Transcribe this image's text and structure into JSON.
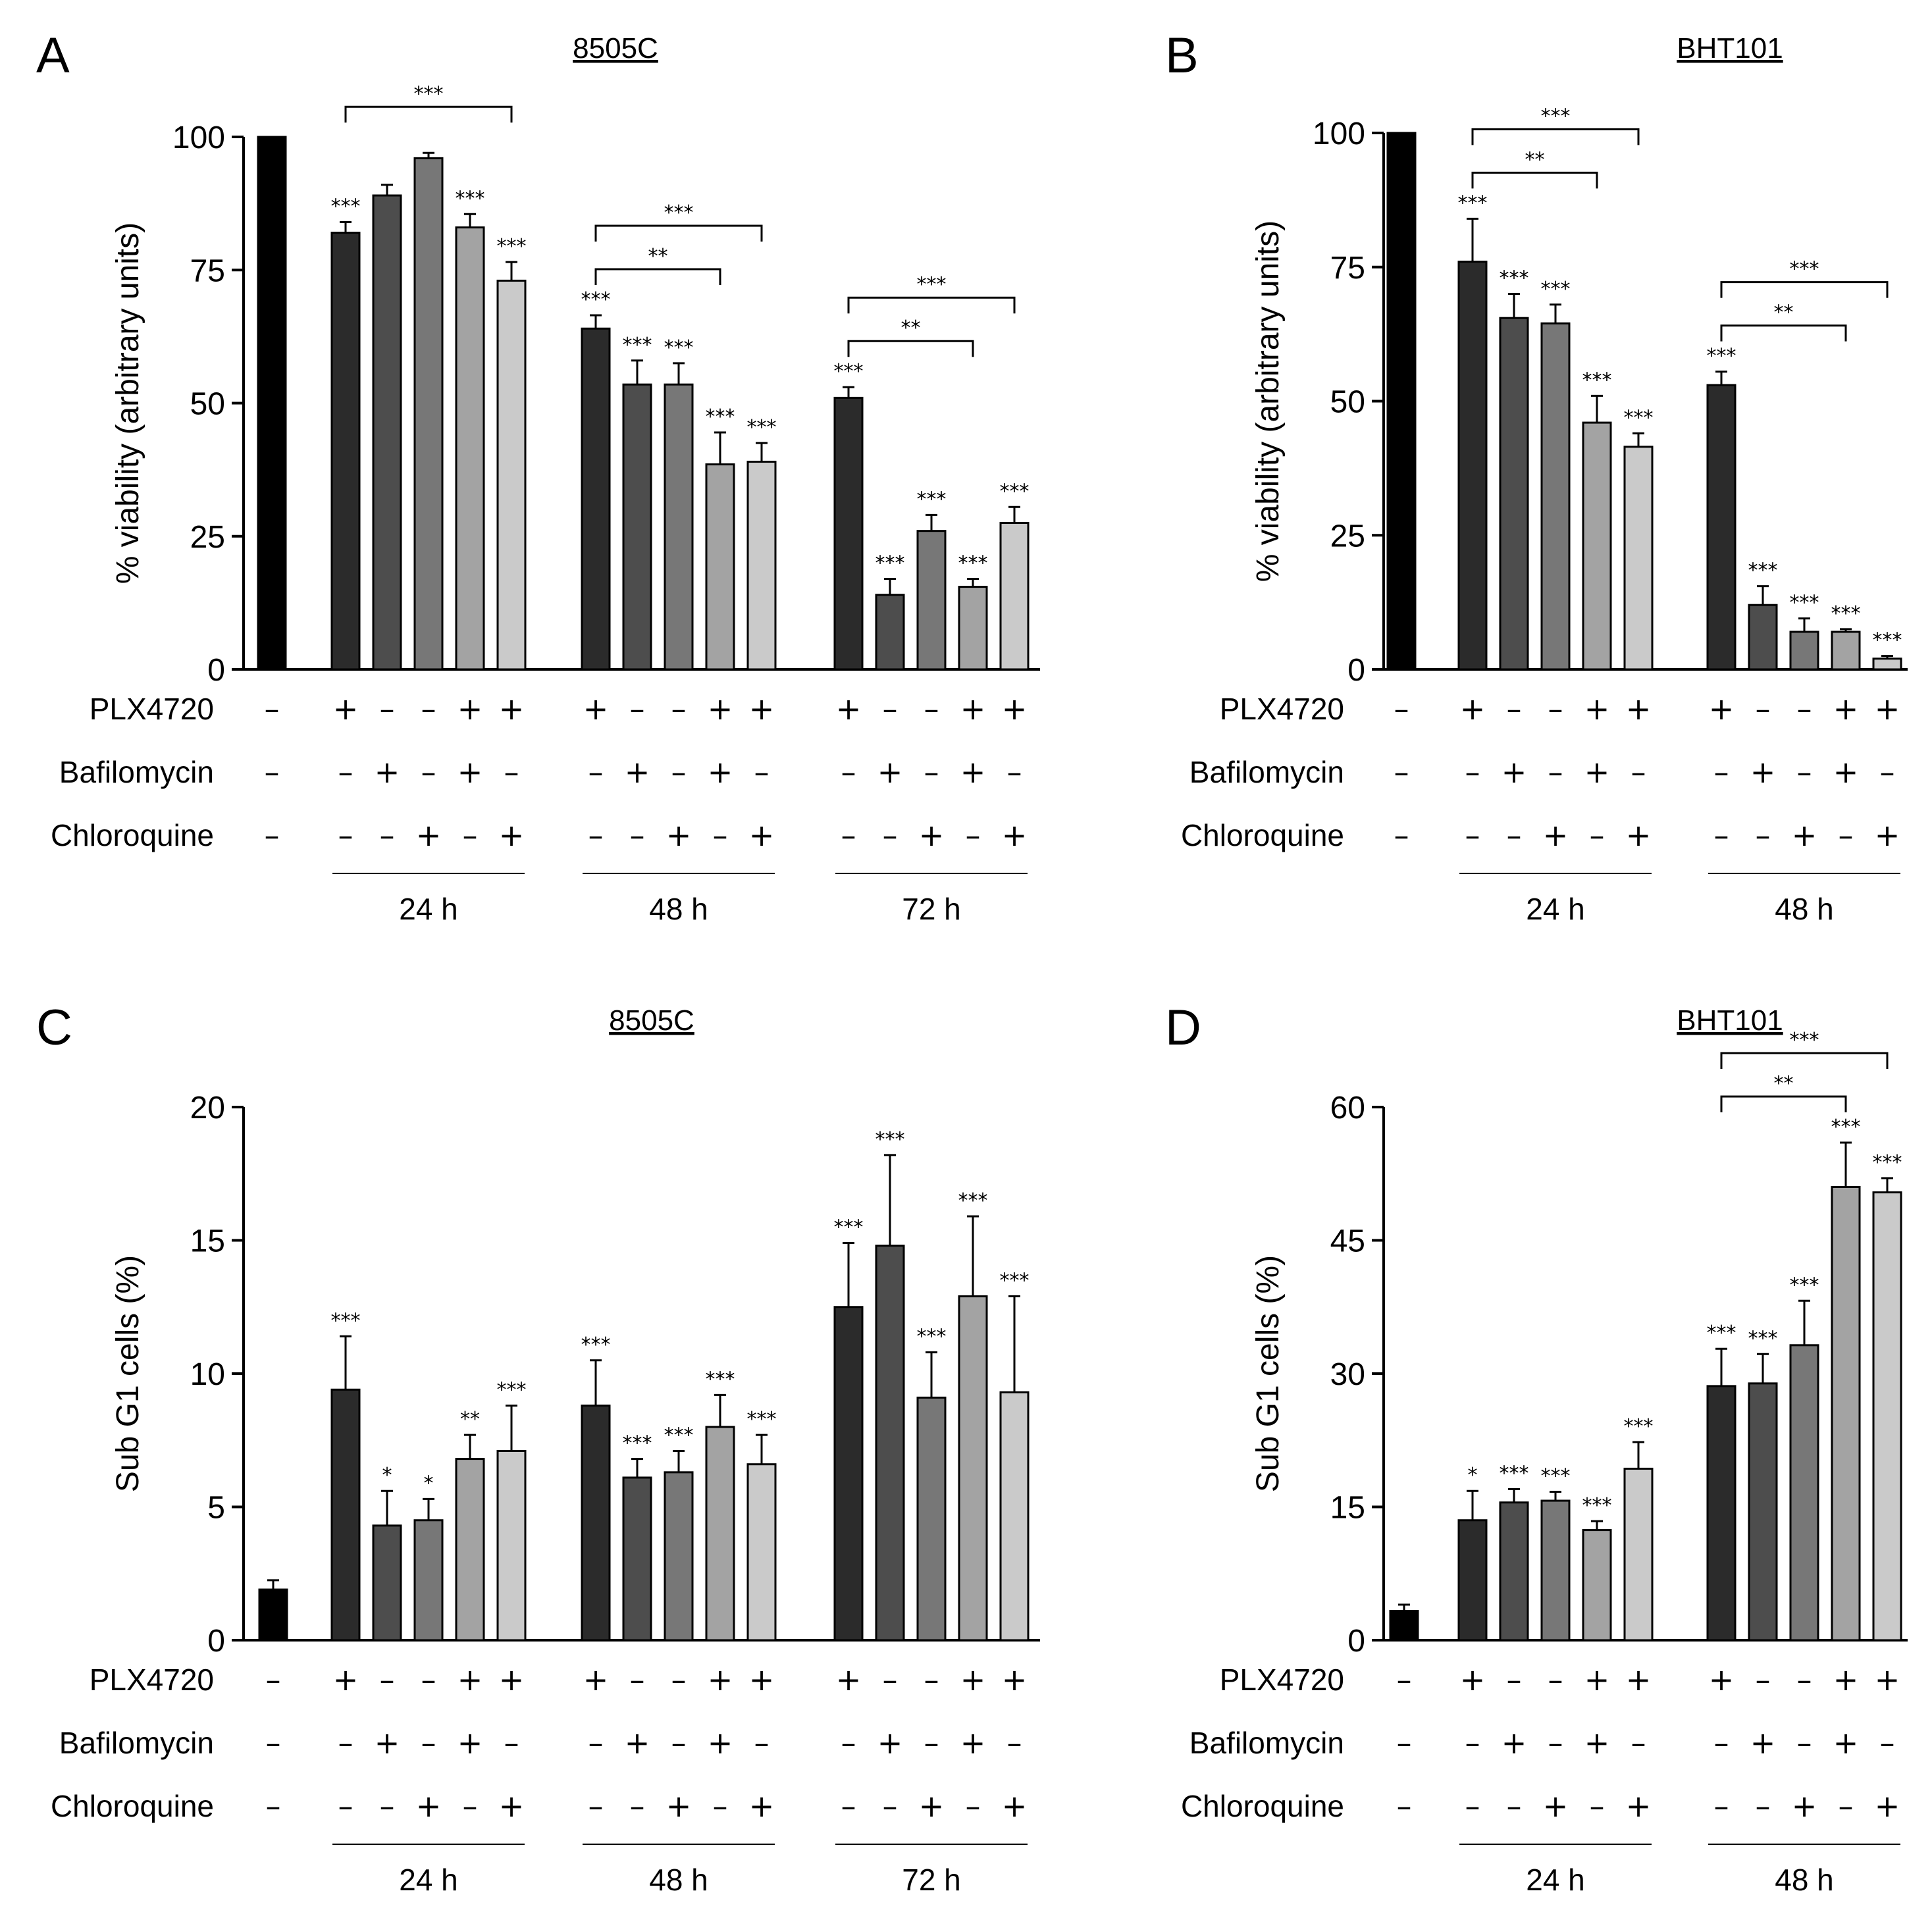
{
  "figure": {
    "conditions": [
      {
        "plx": "–",
        "baf": "–",
        "cq": "–"
      },
      {
        "plx": "+",
        "baf": "–",
        "cq": "–"
      },
      {
        "plx": "–",
        "baf": "+",
        "cq": "–"
      },
      {
        "plx": "–",
        "baf": "–",
        "cq": "+"
      },
      {
        "plx": "+",
        "baf": "+",
        "cq": "–"
      },
      {
        "plx": "+",
        "baf": "–",
        "cq": "+"
      }
    ],
    "treatment_labels": [
      "PLX4720",
      "Bafilomycin",
      "Chloroquine"
    ],
    "bar_colors": [
      "#000000",
      "#2b2b2b",
      "#4d4d4d",
      "#777777",
      "#a3a3a3",
      "#cacaca"
    ]
  },
  "chart_data": [
    {
      "panel": "A",
      "type": "bar",
      "title": "8505C",
      "ylabel": "% viability (arbitrary units)",
      "ylim": [
        0,
        100
      ],
      "yticks": [
        0,
        25,
        50,
        75,
        100
      ],
      "control": {
        "value": 100,
        "error": 0,
        "star": ""
      },
      "groups": [
        {
          "label": "24 h",
          "values": [
            82,
            89,
            96,
            83,
            73
          ],
          "errors": [
            2,
            2,
            1,
            2.5,
            3.5
          ],
          "stars": [
            "***",
            "",
            "",
            "***",
            "***"
          ],
          "brackets": [
            {
              "from": 0,
              "to": 4,
              "label": "***"
            }
          ]
        },
        {
          "label": "48 h",
          "values": [
            64,
            53.5,
            53.5,
            38.5,
            39
          ],
          "errors": [
            2.5,
            4.5,
            4,
            6,
            3.5
          ],
          "stars": [
            "***",
            "***",
            "***",
            "***",
            "***"
          ],
          "brackets": [
            {
              "from": 0,
              "to": 3,
              "label": "**"
            },
            {
              "from": 0,
              "to": 4,
              "label": "***"
            }
          ]
        },
        {
          "label": "72 h",
          "values": [
            51,
            14,
            26,
            15.5,
            27.5
          ],
          "errors": [
            2,
            3,
            3,
            1.5,
            3
          ],
          "stars": [
            "***",
            "***",
            "***",
            "***",
            "***"
          ],
          "brackets": [
            {
              "from": 0,
              "to": 3,
              "label": "**"
            },
            {
              "from": 0,
              "to": 4,
              "label": "***"
            }
          ]
        }
      ]
    },
    {
      "panel": "B",
      "type": "bar",
      "title": "BHT101",
      "ylabel": "% viability (arbitrary units)",
      "ylim": [
        0,
        100
      ],
      "yticks": [
        0,
        25,
        50,
        75,
        100
      ],
      "control": {
        "value": 100,
        "error": 0,
        "star": ""
      },
      "groups": [
        {
          "label": "24 h",
          "values": [
            76,
            65.5,
            64.5,
            46,
            41.5
          ],
          "errors": [
            8,
            4.5,
            3.5,
            5,
            2.5
          ],
          "stars": [
            "***",
            "***",
            "***",
            "***",
            "***"
          ],
          "brackets": [
            {
              "from": 0,
              "to": 3,
              "label": "**"
            },
            {
              "from": 0,
              "to": 4,
              "label": "***"
            }
          ]
        },
        {
          "label": "48 h",
          "values": [
            53,
            12,
            7,
            7,
            2
          ],
          "errors": [
            2.5,
            3.5,
            2.5,
            0.5,
            0.5
          ],
          "stars": [
            "***",
            "***",
            "***",
            "***",
            "***"
          ],
          "brackets": [
            {
              "from": 0,
              "to": 3,
              "label": "**"
            },
            {
              "from": 0,
              "to": 4,
              "label": "***"
            }
          ]
        }
      ]
    },
    {
      "panel": "C",
      "type": "bar",
      "title": "8505C",
      "ylabel": "Sub G1 cells (%)",
      "ylim": [
        0,
        20
      ],
      "yticks": [
        0,
        5,
        10,
        15,
        20
      ],
      "control": {
        "value": 1.9,
        "error": 0.35,
        "star": ""
      },
      "groups": [
        {
          "label": "24 h",
          "values": [
            9.4,
            4.3,
            4.5,
            6.8,
            7.1
          ],
          "errors": [
            2.0,
            1.3,
            0.8,
            0.9,
            1.7
          ],
          "stars": [
            "***",
            "*",
            "*",
            "**",
            "***"
          ],
          "brackets": []
        },
        {
          "label": "48 h",
          "values": [
            8.8,
            6.1,
            6.3,
            8.0,
            6.6
          ],
          "errors": [
            1.7,
            0.7,
            0.8,
            1.2,
            1.1
          ],
          "stars": [
            "***",
            "***",
            "***",
            "***",
            "***"
          ],
          "brackets": []
        },
        {
          "label": "72 h",
          "values": [
            12.5,
            14.8,
            9.1,
            12.9,
            9.3
          ],
          "errors": [
            2.4,
            3.4,
            1.7,
            3.0,
            3.6
          ],
          "stars": [
            "***",
            "***",
            "***",
            "***",
            "***"
          ],
          "brackets": []
        }
      ]
    },
    {
      "panel": "D",
      "type": "bar",
      "title": "BHT101",
      "ylabel": "Sub G1 cells (%)",
      "ylim": [
        0,
        60
      ],
      "yticks": [
        0,
        15,
        30,
        45,
        60
      ],
      "control": {
        "value": 3.3,
        "error": 0.7,
        "star": ""
      },
      "groups": [
        {
          "label": "24 h",
          "values": [
            13.5,
            15.5,
            15.7,
            12.4,
            19.3
          ],
          "errors": [
            3.3,
            1.5,
            1.0,
            1.0,
            3.0
          ],
          "stars": [
            "*",
            "***",
            "***",
            "***",
            "***"
          ],
          "brackets": []
        },
        {
          "label": "48 h",
          "values": [
            28.6,
            28.9,
            33.2,
            51.0,
            50.4
          ],
          "errors": [
            4.2,
            3.3,
            5.0,
            5.0,
            1.6
          ],
          "stars": [
            "***",
            "***",
            "***",
            "***",
            "***"
          ],
          "brackets": [
            {
              "from": 0,
              "to": 3,
              "label": "**"
            },
            {
              "from": 0,
              "to": 4,
              "label": "***"
            }
          ]
        }
      ]
    }
  ]
}
